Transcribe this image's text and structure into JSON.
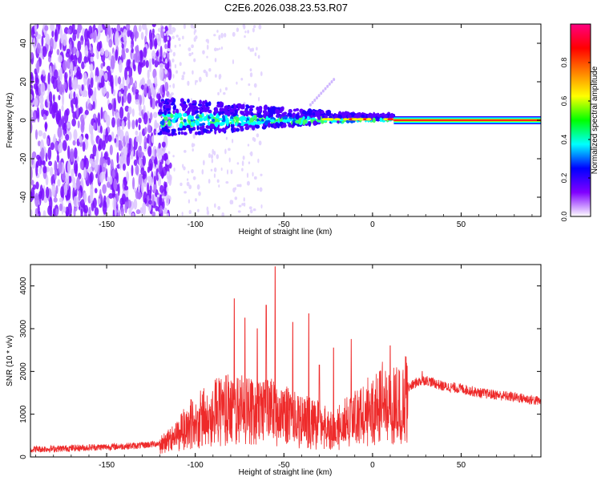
{
  "title": "C2E6.2026.038.23.53.R07",
  "chart_data": [
    {
      "type": "heatmap",
      "title": "C2E6.2026.038.23.53.R07",
      "xlabel": "Height of straight line (km)",
      "ylabel": "Frequency (Hz)",
      "xlim": [
        -193,
        95
      ],
      "ylim": [
        -50,
        50
      ],
      "xticks": [
        -150,
        -100,
        -50,
        0,
        50
      ],
      "yticks": [
        -40,
        -20,
        0,
        20,
        40
      ],
      "colorbar": {
        "label": "Normalized spectral amplitude",
        "range": [
          0.0,
          1.0
        ],
        "ticks": [
          0.0,
          0.2,
          0.4,
          0.6,
          0.8
        ],
        "colors": [
          "#ffffff",
          "#8000ff",
          "#0000ff",
          "#00ffff",
          "#00ff00",
          "#ffff00",
          "#ff8000",
          "#ff0000",
          "#ff0080"
        ]
      },
      "features": {
        "noise_region_x": [
          -193,
          -120
        ],
        "transition_region_x": [
          -120,
          12
        ],
        "steady_tone_region_x": [
          12,
          95
        ],
        "tone_frequency_hz": 0
      }
    },
    {
      "type": "line",
      "xlabel": "Height of straight line (km)",
      "ylabel": "SNR (10 * v/v)",
      "xlim": [
        -193,
        95
      ],
      "ylim": [
        0,
        4500
      ],
      "xticks": [
        -150,
        -100,
        -50,
        0,
        50
      ],
      "yticks": [
        0,
        1000,
        2000,
        3000,
        4000
      ],
      "color": "#ee2a2a",
      "series": [
        {
          "x": [
            -193,
            -180,
            -160,
            -140,
            -130,
            -120,
            -115,
            -110,
            -105,
            -100,
            -95,
            -90,
            -85,
            -80,
            -75,
            -70,
            -65,
            -60,
            -55,
            -50,
            -45,
            -40,
            -35,
            -30,
            -25,
            -20,
            -15,
            -10,
            -5,
            0,
            5,
            10,
            15,
            20,
            25,
            30,
            40,
            50,
            60,
            70,
            80,
            95
          ],
          "values": [
            180,
            190,
            220,
            250,
            270,
            320,
            420,
            560,
            800,
            950,
            1050,
            1150,
            1250,
            1300,
            1250,
            1200,
            1150,
            1300,
            1150,
            1100,
            1000,
            950,
            900,
            850,
            800,
            750,
            900,
            1000,
            1150,
            1300,
            1450,
            1350,
            1400,
            1600,
            1750,
            1800,
            1650,
            1600,
            1500,
            1450,
            1400,
            1300
          ]
        }
      ],
      "peaks": [
        {
          "x": -78,
          "y": 3700
        },
        {
          "x": -72,
          "y": 3250
        },
        {
          "x": -65,
          "y": 3000
        },
        {
          "x": -60,
          "y": 3550
        },
        {
          "x": -55,
          "y": 4450
        },
        {
          "x": -45,
          "y": 3150
        },
        {
          "x": -36,
          "y": 3350
        },
        {
          "x": -30,
          "y": 2150
        },
        {
          "x": -22,
          "y": 2550
        },
        {
          "x": -12,
          "y": 2750
        },
        {
          "x": 10,
          "y": 2600
        },
        {
          "x": 28,
          "y": 2000
        }
      ]
    }
  ]
}
